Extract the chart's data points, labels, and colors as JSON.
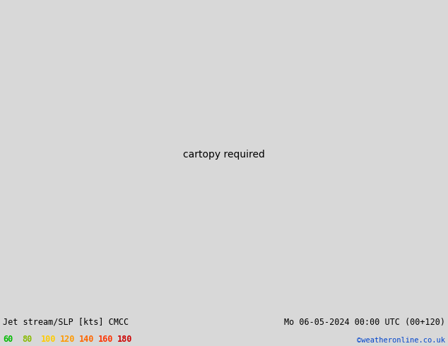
{
  "title_left": "Jet stream/SLP [kts] CMCC",
  "title_right": "Mo 06-05-2024 00:00 UTC (00+120)",
  "credit": "©weatheronline.co.uk",
  "legend_values": [
    60,
    80,
    100,
    120,
    140,
    160,
    180
  ],
  "legend_colors": [
    "#00bb00",
    "#88bb00",
    "#ffcc00",
    "#ff9900",
    "#ff6600",
    "#ff3300",
    "#cc0000"
  ],
  "bg_color": "#d8d8d8",
  "bottom_bar_color": "#c8c8c8",
  "text_color": "#000000",
  "credit_color": "#0044cc",
  "fig_width": 6.34,
  "fig_height": 4.9,
  "map_extent": [
    -5,
    35,
    50,
    72
  ],
  "jet_color_light": "#b8e8b0",
  "jet_color_mid": "#70c870",
  "jet_color_dark": "#208820",
  "sea_color": "#c8e8e8",
  "land_color_gray": "#d8d8d8",
  "coast_color": "#333333",
  "red_line_color": "#dd0000",
  "blue_line_color": "#0000cc",
  "black_line_color": "#000000"
}
